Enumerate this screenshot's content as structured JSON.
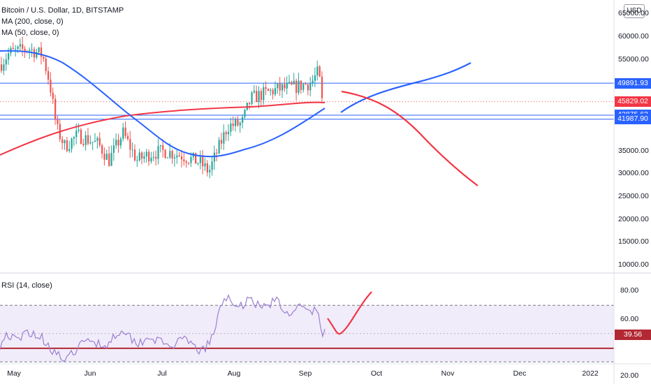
{
  "header": {
    "title": "Bitcoin / U.S. Dollar, 1D, BITSTAMP",
    "ma200_label": "MA (200, close, 0)",
    "ma50_label": "MA (50, close, 0)",
    "currency": "USD"
  },
  "rsi": {
    "label": "RSI (14, close)",
    "current": "39.56",
    "upper_band": 70,
    "lower_band": 30,
    "mid": 50
  },
  "price_axis": {
    "ticks": [
      "65000.00",
      "60000.00",
      "55000.00",
      "35000.00",
      "30000.00",
      "25000.00",
      "20000.00",
      "15000.00",
      "10000.00"
    ]
  },
  "price_labels": [
    {
      "text": "49891.93",
      "color": "#2962ff",
      "value": 49891.93
    },
    {
      "text": "45829.02",
      "color": "#f23645",
      "value": 45829.02
    },
    {
      "text": "42875.62",
      "color": "#2962ff",
      "value": 42875.62
    },
    {
      "text": "41987.90",
      "color": "#2962ff",
      "value": 41987.9
    }
  ],
  "rsi_axis": {
    "ticks": [
      "80.00",
      "60.00",
      "20.00"
    ]
  },
  "time_axis": {
    "labels": [
      "May",
      "Jun",
      "Jul",
      "Aug",
      "Sep",
      "Oct",
      "Nov",
      "Dec",
      "2022"
    ]
  },
  "colors": {
    "up": "#26a69a",
    "down": "#ef5350",
    "ma200": "#f23645",
    "ma50": "#2962ff",
    "hline": "#2962ff",
    "rsi_line": "#9c7fd1",
    "rsi_fill": "#f1ecfa",
    "drawing_blue": "#2962ff",
    "drawing_red": "#f23645"
  }
}
